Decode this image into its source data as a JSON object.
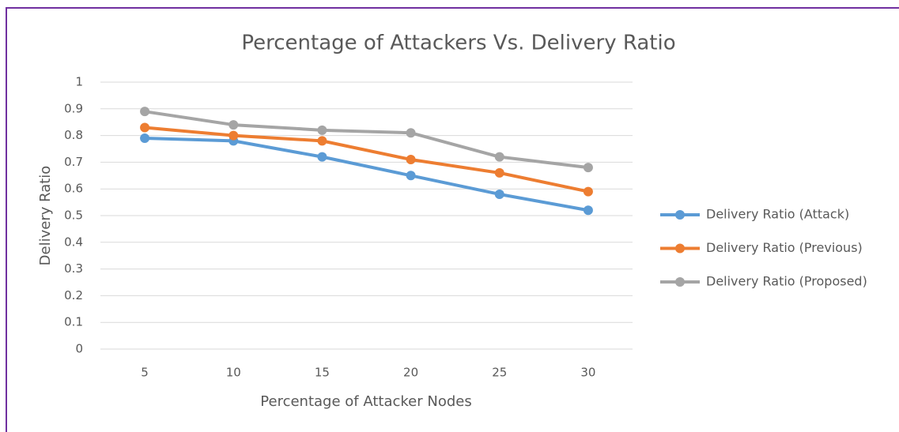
{
  "chart_data": {
    "type": "line",
    "title": "Percentage of Attackers Vs. Delivery Ratio",
    "x_label": "Percentage of Attacker Nodes",
    "y_label": "Delivery Ratio",
    "categories": [
      "5",
      "10",
      "15",
      "20",
      "25",
      "30"
    ],
    "series": [
      {
        "name": "Delivery Ratio (Attack)",
        "color": "#5b9bd5",
        "values": [
          0.79,
          0.78,
          0.72,
          0.65,
          0.58,
          0.52
        ]
      },
      {
        "name": "Delivery Ratio (Previous)",
        "color": "#ed7d31",
        "values": [
          0.83,
          0.8,
          0.78,
          0.71,
          0.66,
          0.59
        ]
      },
      {
        "name": "Delivery Ratio (Proposed)",
        "color": "#a5a5a5",
        "values": [
          0.89,
          0.84,
          0.82,
          0.81,
          0.72,
          0.68
        ]
      }
    ],
    "ylim": [
      0,
      1
    ],
    "yticks": [
      0,
      0.1,
      0.2,
      0.3,
      0.4,
      0.5,
      0.6,
      0.7,
      0.8,
      0.9,
      1
    ],
    "grid": true,
    "legend": "right"
  }
}
